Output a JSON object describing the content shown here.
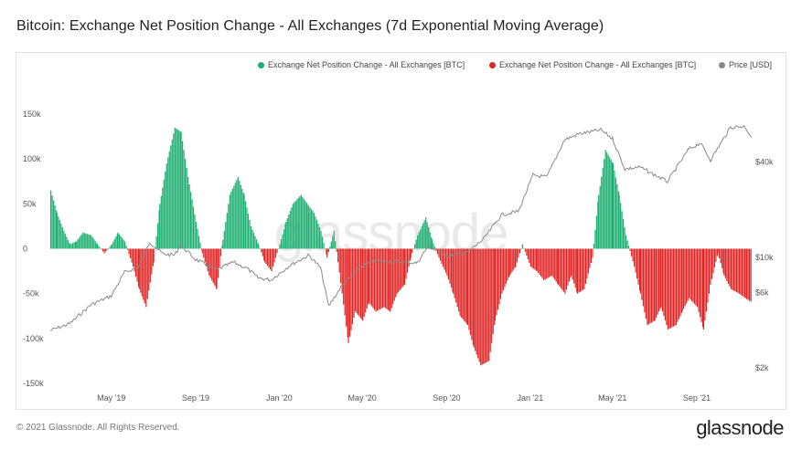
{
  "title": "Bitcoin: Exchange Net Position Change - All Exchanges (7d Exponential Moving Average)",
  "legend": [
    {
      "label": "Exchange Net Position Change - All Exchanges [BTC]",
      "color": "#1aae6f"
    },
    {
      "label": "Exchange Net Position Change - All Exchanges [BTC]",
      "color": "#e02424"
    },
    {
      "label": "Price [USD]",
      "color": "#888888"
    }
  ],
  "watermark": "glassnode",
  "footer": "© 2021 Glassnode. All Rights Reserved.",
  "brand": "glassnode",
  "colors": {
    "positive": "#1aae6f",
    "negative": "#e02424",
    "price": "#8a8a8a"
  },
  "chart_data": {
    "type": "bar",
    "title": "Bitcoin: Exchange Net Position Change - All Exchanges (7d Exponential Moving Average)",
    "x_start": "2019-02-01",
    "x_end": "2021-11-20",
    "x_ticks": [
      "May '19",
      "Sep '19",
      "Jan '20",
      "May '20",
      "Sep '20",
      "Jan '21",
      "May '21",
      "Sep '21"
    ],
    "y_left_ticks": [
      "150k",
      "100k",
      "50k",
      "0",
      "-50k",
      "-100k",
      "-150k"
    ],
    "ylim_left": [
      -150000,
      150000
    ],
    "y_right_ticks": [
      "$40k",
      "$10k",
      "$6k",
      "$2k"
    ],
    "y_right_scale": "log",
    "ylim_right": [
      1600,
      80000
    ],
    "series": [
      {
        "name": "Exchange Net Position Change - All Exchanges [BTC]",
        "color": "green",
        "kind": "bar",
        "points": [
          [
            "2019-02-01",
            65000
          ],
          [
            "2019-02-10",
            40000
          ],
          [
            "2019-02-20",
            20000
          ],
          [
            "2019-03-01",
            5000
          ],
          [
            "2019-03-10",
            8000
          ],
          [
            "2019-03-20",
            18000
          ],
          [
            "2019-04-01",
            15000
          ],
          [
            "2019-04-10",
            5000
          ],
          [
            "2019-04-20",
            -5000
          ],
          [
            "2019-05-01",
            5000
          ],
          [
            "2019-05-10",
            18000
          ],
          [
            "2019-05-20",
            8000
          ],
          [
            "2019-06-01",
            -20000
          ],
          [
            "2019-06-10",
            -45000
          ],
          [
            "2019-06-20",
            -65000
          ],
          [
            "2019-07-01",
            -15000
          ],
          [
            "2019-07-10",
            50000
          ],
          [
            "2019-07-20",
            95000
          ],
          [
            "2019-08-01",
            135000
          ],
          [
            "2019-08-10",
            130000
          ],
          [
            "2019-08-20",
            80000
          ],
          [
            "2019-09-01",
            30000
          ],
          [
            "2019-09-10",
            -5000
          ],
          [
            "2019-09-20",
            -30000
          ],
          [
            "2019-10-01",
            -45000
          ],
          [
            "2019-10-10",
            10000
          ],
          [
            "2019-10-20",
            60000
          ],
          [
            "2019-11-01",
            80000
          ],
          [
            "2019-11-10",
            60000
          ],
          [
            "2019-11-20",
            25000
          ],
          [
            "2019-12-01",
            5000
          ],
          [
            "2019-12-10",
            -15000
          ],
          [
            "2019-12-20",
            -25000
          ],
          [
            "2020-01-01",
            5000
          ],
          [
            "2020-01-10",
            30000
          ],
          [
            "2020-01-20",
            50000
          ],
          [
            "2020-02-01",
            60000
          ],
          [
            "2020-02-10",
            50000
          ],
          [
            "2020-02-20",
            40000
          ],
          [
            "2020-03-01",
            20000
          ],
          [
            "2020-03-10",
            -10000
          ],
          [
            "2020-03-20",
            20000
          ],
          [
            "2020-04-01",
            -50000
          ],
          [
            "2020-04-10",
            -105000
          ],
          [
            "2020-04-20",
            -70000
          ],
          [
            "2020-05-01",
            -80000
          ],
          [
            "2020-05-10",
            -60000
          ],
          [
            "2020-05-20",
            -70000
          ],
          [
            "2020-06-01",
            -65000
          ],
          [
            "2020-06-10",
            -70000
          ],
          [
            "2020-06-20",
            -50000
          ],
          [
            "2020-07-01",
            -40000
          ],
          [
            "2020-07-10",
            -10000
          ],
          [
            "2020-07-20",
            15000
          ],
          [
            "2020-08-01",
            35000
          ],
          [
            "2020-08-10",
            10000
          ],
          [
            "2020-08-20",
            -10000
          ],
          [
            "2020-09-01",
            -30000
          ],
          [
            "2020-09-10",
            -50000
          ],
          [
            "2020-09-20",
            -75000
          ],
          [
            "2020-10-01",
            -85000
          ],
          [
            "2020-10-10",
            -110000
          ],
          [
            "2020-10-20",
            -130000
          ],
          [
            "2020-11-01",
            -125000
          ],
          [
            "2020-11-10",
            -80000
          ],
          [
            "2020-11-20",
            -50000
          ],
          [
            "2020-12-01",
            -30000
          ],
          [
            "2020-12-10",
            -20000
          ],
          [
            "2020-12-20",
            5000
          ],
          [
            "2021-01-01",
            -20000
          ],
          [
            "2021-01-10",
            -25000
          ],
          [
            "2021-01-20",
            -35000
          ],
          [
            "2021-02-01",
            -30000
          ],
          [
            "2021-02-10",
            -40000
          ],
          [
            "2021-02-20",
            -50000
          ],
          [
            "2021-03-01",
            -30000
          ],
          [
            "2021-03-10",
            -50000
          ],
          [
            "2021-03-20",
            -45000
          ],
          [
            "2021-04-01",
            -10000
          ],
          [
            "2021-04-10",
            60000
          ],
          [
            "2021-04-20",
            110000
          ],
          [
            "2021-05-01",
            95000
          ],
          [
            "2021-05-10",
            60000
          ],
          [
            "2021-05-20",
            15000
          ],
          [
            "2021-06-01",
            -20000
          ],
          [
            "2021-06-10",
            -50000
          ],
          [
            "2021-06-20",
            -85000
          ],
          [
            "2021-07-01",
            -80000
          ],
          [
            "2021-07-10",
            -65000
          ],
          [
            "2021-07-20",
            -90000
          ],
          [
            "2021-08-01",
            -85000
          ],
          [
            "2021-08-10",
            -70000
          ],
          [
            "2021-08-20",
            -55000
          ],
          [
            "2021-09-01",
            -65000
          ],
          [
            "2021-09-10",
            -90000
          ],
          [
            "2021-09-20",
            -40000
          ],
          [
            "2021-10-01",
            -5000
          ],
          [
            "2021-10-10",
            -30000
          ],
          [
            "2021-10-20",
            -45000
          ],
          [
            "2021-11-01",
            -50000
          ],
          [
            "2021-11-10",
            -55000
          ],
          [
            "2021-11-20",
            -60000
          ]
        ]
      },
      {
        "name": "Price [USD]",
        "kind": "line",
        "points": [
          [
            "2019-02-01",
            3450
          ],
          [
            "2019-03-01",
            3800
          ],
          [
            "2019-04-01",
            5000
          ],
          [
            "2019-05-01",
            5700
          ],
          [
            "2019-05-20",
            8000
          ],
          [
            "2019-06-10",
            8700
          ],
          [
            "2019-06-26",
            12500
          ],
          [
            "2019-07-15",
            10500
          ],
          [
            "2019-08-01",
            10300
          ],
          [
            "2019-08-10",
            11900
          ],
          [
            "2019-09-01",
            9700
          ],
          [
            "2019-10-01",
            8300
          ],
          [
            "2019-10-26",
            9300
          ],
          [
            "2019-11-15",
            8500
          ],
          [
            "2019-12-01",
            7400
          ],
          [
            "2019-12-20",
            7200
          ],
          [
            "2020-01-15",
            8800
          ],
          [
            "2020-02-13",
            10300
          ],
          [
            "2020-03-01",
            8600
          ],
          [
            "2020-03-13",
            4900
          ],
          [
            "2020-04-01",
            6600
          ],
          [
            "2020-04-30",
            8800
          ],
          [
            "2020-05-20",
            9500
          ],
          [
            "2020-06-15",
            9400
          ],
          [
            "2020-07-20",
            9200
          ],
          [
            "2020-08-05",
            11700
          ],
          [
            "2020-09-05",
            10200
          ],
          [
            "2020-10-01",
            10700
          ],
          [
            "2020-10-25",
            13000
          ],
          [
            "2020-11-20",
            18500
          ],
          [
            "2020-12-15",
            19500
          ],
          [
            "2021-01-05",
            33000
          ],
          [
            "2021-01-25",
            32000
          ],
          [
            "2021-02-20",
            55000
          ],
          [
            "2021-03-13",
            60000
          ],
          [
            "2021-04-14",
            63500
          ],
          [
            "2021-05-01",
            56000
          ],
          [
            "2021-05-19",
            36000
          ],
          [
            "2021-06-10",
            37000
          ],
          [
            "2021-07-20",
            30000
          ],
          [
            "2021-08-20",
            48000
          ],
          [
            "2021-09-06",
            52500
          ],
          [
            "2021-09-21",
            41000
          ],
          [
            "2021-10-20",
            66000
          ],
          [
            "2021-11-10",
            67000
          ],
          [
            "2021-11-20",
            57000
          ]
        ]
      }
    ]
  }
}
